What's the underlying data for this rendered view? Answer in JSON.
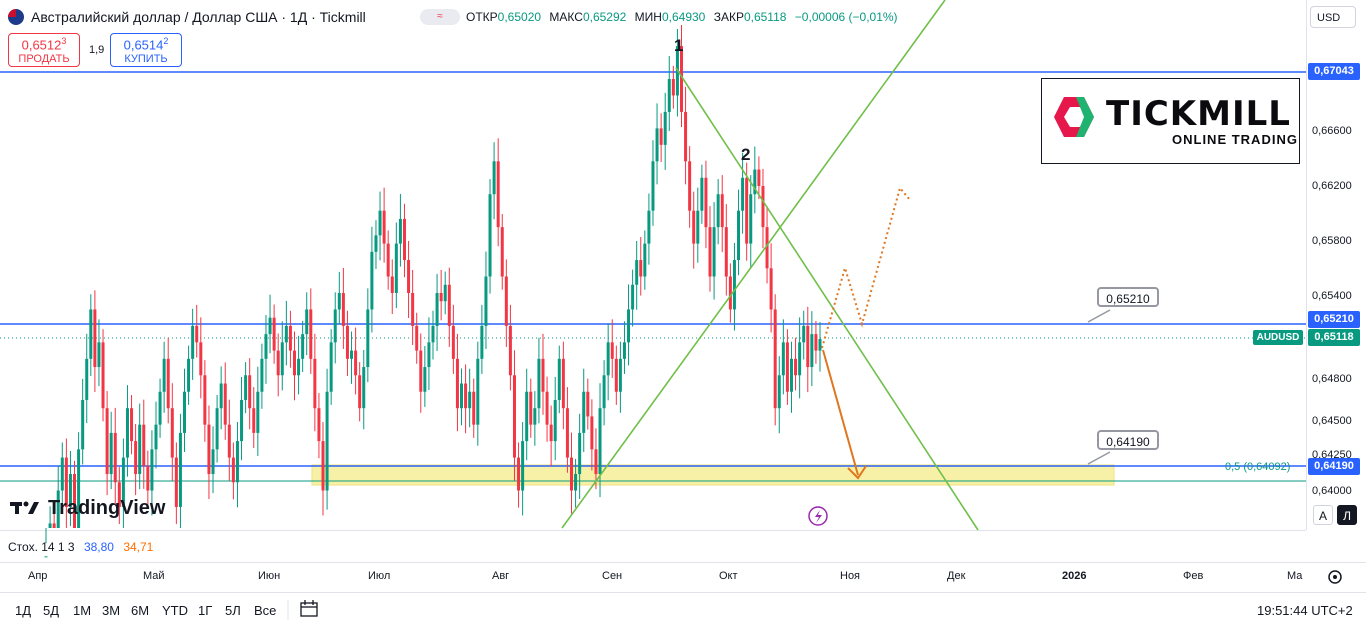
{
  "header": {
    "title": "Австралийский доллар / Доллар США · 1Д · Tickmill",
    "pill": "≈",
    "ohlc": {
      "open_label": "ОТКР",
      "open": "0,65020",
      "high_label": "МАКС",
      "high": "0,65292",
      "low_label": "МИН",
      "low": "0,64930",
      "close_label": "ЗАКР",
      "close": "0,65118",
      "change": "−0,00006 (−0,01%)"
    }
  },
  "trade": {
    "sell_price": "0,6512",
    "sell_sup": "3",
    "sell_label": "ПРОДАТЬ",
    "spread": "1,9",
    "buy_price": "0,6514",
    "buy_sup": "2",
    "buy_label": "КУПИТЬ"
  },
  "currency_selector": "USD",
  "price_axis": {
    "labels": [
      "0,66600",
      "0,66200",
      "0,65800",
      "0,65400",
      "0,64800",
      "0,64500",
      "0,64250",
      "0,64000"
    ],
    "tags": [
      {
        "text": "0,67043",
        "color": "#2962ff"
      },
      {
        "text": "0,65210",
        "color": "#2962ff"
      },
      {
        "text": "0,65118",
        "color": "#089981"
      },
      {
        "text": "0,64190",
        "color": "#2962ff"
      }
    ],
    "symbol_tag": "AUDUSD"
  },
  "callouts": {
    "upper": "0,65210",
    "lower": "0,64190"
  },
  "fib_label": "0,5 (0,64092)",
  "wave_labels": {
    "one": "1",
    "two": "2"
  },
  "logo": {
    "word": "TICKMILL",
    "sub": "ONLINE TRADING"
  },
  "tradingview": "TradingView",
  "indicator": {
    "name": "Стох. 14 1 3",
    "k": "38,80",
    "d": "34,71"
  },
  "months": [
    "Апр",
    "Май",
    "Июн",
    "Июл",
    "Авг",
    "Сен",
    "Окт",
    "Ноя",
    "Дек",
    "2026",
    "Фев",
    "Ма"
  ],
  "bottom_toolbar": {
    "timeframes": [
      "1Д",
      "5Д",
      "1М",
      "3М",
      "6М",
      "YTD",
      "1Г",
      "5Л",
      "Все"
    ],
    "clock": "19:51:44 UTC+2"
  },
  "buttons": {
    "auto": "A",
    "log": "Л"
  },
  "colors": {
    "up": "#089981",
    "down": "#f23645",
    "level": "#2962ff",
    "trend": "#6fbf4a",
    "arrow": "#e0761f",
    "zone": "#f7f1a8"
  },
  "chart_data": {
    "type": "candlestick",
    "symbol": "AUDUSD",
    "timeframe": "1Д",
    "ylim": [
      0.6396,
      0.6718
    ],
    "levels": [
      0.67043,
      0.6521,
      0.6419
    ],
    "last_price": 0.65118,
    "fib_level": {
      "ratio": 0.5,
      "price": 0.64092
    },
    "closes": [
      0.638,
      0.64,
      0.636,
      0.642,
      0.644,
      0.641,
      0.643,
      0.6395,
      0.6445,
      0.6475,
      0.65,
      0.653,
      0.6495,
      0.651,
      0.647,
      0.643,
      0.6455,
      0.6425,
      0.641,
      0.644,
      0.647,
      0.645,
      0.643,
      0.646,
      0.6435,
      0.642,
      0.6445,
      0.646,
      0.648,
      0.65,
      0.647,
      0.644,
      0.641,
      0.6455,
      0.648,
      0.65,
      0.652,
      0.651,
      0.649,
      0.646,
      0.643,
      0.6445,
      0.647,
      0.6485,
      0.646,
      0.644,
      0.6425,
      0.645,
      0.6475,
      0.649,
      0.647,
      0.6455,
      0.648,
      0.65,
      0.6515,
      0.6525,
      0.6505,
      0.649,
      0.651,
      0.652,
      0.6505,
      0.649,
      0.65,
      0.6515,
      0.653,
      0.65,
      0.647,
      0.645,
      0.642,
      0.648,
      0.651,
      0.653,
      0.654,
      0.652,
      0.65,
      0.6505,
      0.649,
      0.647,
      0.6495,
      0.653,
      0.6565,
      0.6575,
      0.659,
      0.657,
      0.655,
      0.654,
      0.657,
      0.6585,
      0.656,
      0.654,
      0.652,
      0.6505,
      0.648,
      0.6495,
      0.651,
      0.652,
      0.654,
      0.6535,
      0.6545,
      0.652,
      0.65,
      0.647,
      0.6485,
      0.647,
      0.648,
      0.646,
      0.65,
      0.652,
      0.655,
      0.66,
      0.662,
      0.658,
      0.655,
      0.652,
      0.649,
      0.644,
      0.642,
      0.645,
      0.648,
      0.646,
      0.647,
      0.65,
      0.648,
      0.646,
      0.645,
      0.6475,
      0.65,
      0.647,
      0.644,
      0.642,
      0.643,
      0.6455,
      0.648,
      0.6465,
      0.6445,
      0.643,
      0.647,
      0.649,
      0.651,
      0.65,
      0.648,
      0.65,
      0.651,
      0.653,
      0.6545,
      0.656,
      0.655,
      0.657,
      0.659,
      0.662,
      0.664,
      0.663,
      0.665,
      0.667,
      0.666,
      0.669,
      0.665,
      0.662,
      0.659,
      0.657,
      0.659,
      0.661,
      0.658,
      0.655,
      0.658,
      0.66,
      0.658,
      0.655,
      0.653,
      0.656,
      0.659,
      0.661,
      0.657,
      0.66,
      0.6615,
      0.6605,
      0.658,
      0.6555,
      0.653,
      0.647,
      0.649,
      0.651,
      0.648,
      0.65,
      0.649,
      0.651,
      0.652,
      0.6495,
      0.6515,
      0.6505,
      0.6512
    ],
    "projection": {
      "bearish_target": 0.641,
      "bullish_path": [
        0.65118,
        0.6552,
        0.6518,
        0.6618
      ]
    }
  }
}
